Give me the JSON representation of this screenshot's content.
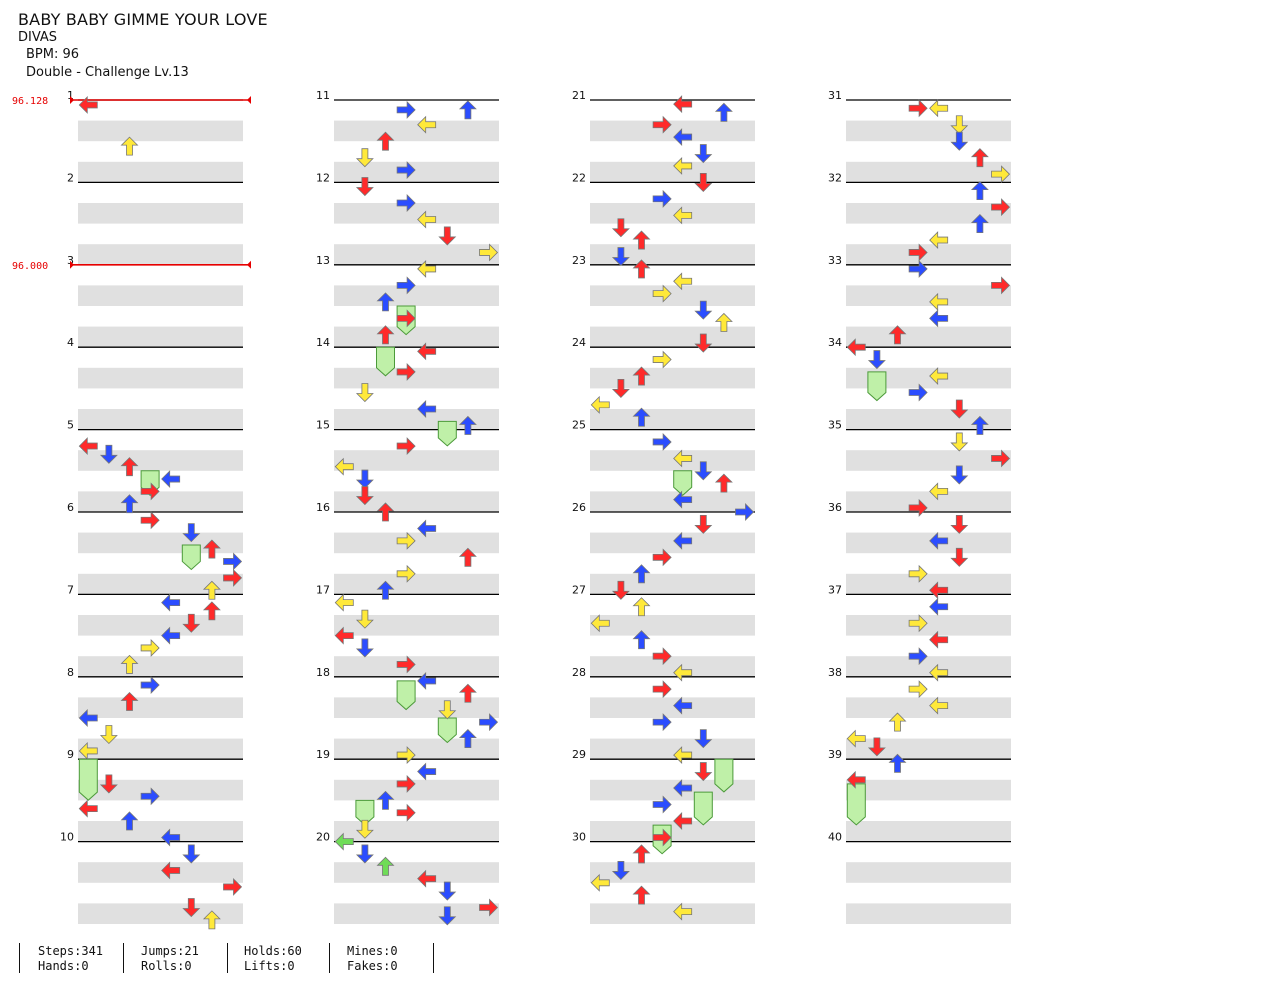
{
  "song": {
    "title": "BABY BABY GIMME YOUR LOVE",
    "artist": "DIVAS",
    "bpm_label": "BPM:",
    "bpm_value": "96",
    "mode": "Double",
    "separator": " - ",
    "difficulty": "Challenge",
    "level_prefix": " Lv.",
    "level": "13"
  },
  "colors": {
    "red": "#ff2a2a",
    "blue": "#2b4dff",
    "yellow": "#ffe93a",
    "green": "#6fdc57",
    "hold": "#bff0a8",
    "stripe": "#e0e0e0",
    "bpm_marker": "#e60000"
  },
  "chart": {
    "columns_measure_start": [
      1,
      11,
      21,
      31
    ],
    "measure_labels": [
      "1",
      "2",
      "3",
      "4",
      "5",
      "6",
      "7",
      "8",
      "9",
      "10",
      "11",
      "12",
      "13",
      "14",
      "15",
      "16",
      "17",
      "18",
      "19",
      "20",
      "21",
      "22",
      "23",
      "24",
      "25",
      "26",
      "27",
      "28",
      "29",
      "30",
      "31",
      "32",
      "33",
      "34",
      "35",
      "36",
      "37",
      "38",
      "39",
      "40"
    ],
    "bpm_changes": [
      {
        "measure": 1,
        "label": "96.128"
      },
      {
        "measure": 3,
        "label": "96.000"
      }
    ],
    "icon": "step-arrow-icon",
    "notes": [
      {
        "m": 1.06,
        "l": 0,
        "c": "red"
      },
      {
        "m": 1.56,
        "l": 2,
        "c": "yellow"
      },
      {
        "m": 5.2,
        "l": 0,
        "c": "red"
      },
      {
        "m": 5.3,
        "l": 1,
        "c": "blue"
      },
      {
        "m": 5.45,
        "l": 2,
        "c": "red"
      },
      {
        "m": 5.6,
        "l": 4,
        "c": "blue"
      },
      {
        "m": 5.75,
        "l": 3,
        "c": "red"
      },
      {
        "m": 5.9,
        "l": 2,
        "c": "blue"
      },
      {
        "m": 6.1,
        "l": 3,
        "c": "red"
      },
      {
        "m": 6.25,
        "l": 5,
        "c": "blue"
      },
      {
        "m": 6.45,
        "l": 6,
        "c": "red"
      },
      {
        "m": 6.6,
        "l": 7,
        "c": "blue"
      },
      {
        "m": 6.8,
        "l": 7,
        "c": "red"
      },
      {
        "m": 6.95,
        "l": 6,
        "c": "yellow"
      },
      {
        "m": 7.1,
        "l": 4,
        "c": "blue"
      },
      {
        "m": 7.2,
        "l": 6,
        "c": "red"
      },
      {
        "m": 7.35,
        "l": 5,
        "c": "red"
      },
      {
        "m": 7.5,
        "l": 4,
        "c": "blue"
      },
      {
        "m": 7.65,
        "l": 3,
        "c": "yellow"
      },
      {
        "m": 7.85,
        "l": 2,
        "c": "yellow"
      },
      {
        "m": 8.1,
        "l": 3,
        "c": "blue"
      },
      {
        "m": 8.3,
        "l": 2,
        "c": "red"
      },
      {
        "m": 8.5,
        "l": 0,
        "c": "blue"
      },
      {
        "m": 8.7,
        "l": 1,
        "c": "yellow"
      },
      {
        "m": 8.9,
        "l": 0,
        "c": "yellow"
      },
      {
        "m": 9.3,
        "l": 1,
        "c": "red"
      },
      {
        "m": 9.45,
        "l": 3,
        "c": "blue"
      },
      {
        "m": 9.6,
        "l": 0,
        "c": "red"
      },
      {
        "m": 9.75,
        "l": 2,
        "c": "blue"
      },
      {
        "m": 9.95,
        "l": 4,
        "c": "blue"
      },
      {
        "m": 10.15,
        "l": 5,
        "c": "blue"
      },
      {
        "m": 10.35,
        "l": 4,
        "c": "red"
      },
      {
        "m": 10.55,
        "l": 7,
        "c": "red"
      },
      {
        "m": 10.8,
        "l": 5,
        "c": "red"
      },
      {
        "m": 10.95,
        "l": 6,
        "c": "yellow"
      },
      {
        "m": 11.12,
        "l": 3,
        "c": "blue"
      },
      {
        "m": 11.12,
        "l": 6,
        "c": "blue"
      },
      {
        "m": 11.3,
        "l": 4,
        "c": "yellow"
      },
      {
        "m": 11.5,
        "l": 2,
        "c": "red"
      },
      {
        "m": 11.7,
        "l": 1,
        "c": "yellow"
      },
      {
        "m": 11.85,
        "l": 3,
        "c": "blue"
      },
      {
        "m": 12.05,
        "l": 1,
        "c": "red"
      },
      {
        "m": 12.25,
        "l": 3,
        "c": "blue"
      },
      {
        "m": 12.45,
        "l": 4,
        "c": "yellow"
      },
      {
        "m": 12.65,
        "l": 5,
        "c": "red"
      },
      {
        "m": 12.85,
        "l": 7,
        "c": "yellow"
      },
      {
        "m": 13.05,
        "l": 4,
        "c": "yellow"
      },
      {
        "m": 13.25,
        "l": 3,
        "c": "blue"
      },
      {
        "m": 13.45,
        "l": 2,
        "c": "blue"
      },
      {
        "m": 13.65,
        "l": 3,
        "c": "red"
      },
      {
        "m": 13.85,
        "l": 2,
        "c": "red"
      },
      {
        "m": 14.05,
        "l": 4,
        "c": "red"
      },
      {
        "m": 14.3,
        "l": 3,
        "c": "red"
      },
      {
        "m": 14.55,
        "l": 1,
        "c": "yellow"
      },
      {
        "m": 14.75,
        "l": 4,
        "c": "blue"
      },
      {
        "m": 14.95,
        "l": 6,
        "c": "blue"
      },
      {
        "m": 15.2,
        "l": 3,
        "c": "red"
      },
      {
        "m": 15.45,
        "l": 0,
        "c": "yellow"
      },
      {
        "m": 15.6,
        "l": 1,
        "c": "blue"
      },
      {
        "m": 15.8,
        "l": 1,
        "c": "red"
      },
      {
        "m": 16.0,
        "l": 2,
        "c": "red"
      },
      {
        "m": 16.2,
        "l": 4,
        "c": "blue"
      },
      {
        "m": 16.35,
        "l": 3,
        "c": "yellow"
      },
      {
        "m": 16.55,
        "l": 6,
        "c": "red"
      },
      {
        "m": 16.75,
        "l": 3,
        "c": "yellow"
      },
      {
        "m": 16.95,
        "l": 2,
        "c": "blue"
      },
      {
        "m": 17.1,
        "l": 0,
        "c": "yellow"
      },
      {
        "m": 17.3,
        "l": 1,
        "c": "yellow"
      },
      {
        "m": 17.5,
        "l": 0,
        "c": "red"
      },
      {
        "m": 17.65,
        "l": 1,
        "c": "blue"
      },
      {
        "m": 17.85,
        "l": 3,
        "c": "red"
      },
      {
        "m": 18.05,
        "l": 4,
        "c": "blue"
      },
      {
        "m": 18.2,
        "l": 6,
        "c": "red"
      },
      {
        "m": 18.4,
        "l": 5,
        "c": "yellow"
      },
      {
        "m": 18.55,
        "l": 7,
        "c": "blue"
      },
      {
        "m": 18.75,
        "l": 6,
        "c": "blue"
      },
      {
        "m": 18.95,
        "l": 3,
        "c": "yellow"
      },
      {
        "m": 19.15,
        "l": 4,
        "c": "blue"
      },
      {
        "m": 19.3,
        "l": 3,
        "c": "red"
      },
      {
        "m": 19.5,
        "l": 2,
        "c": "blue"
      },
      {
        "m": 19.65,
        "l": 3,
        "c": "red"
      },
      {
        "m": 19.85,
        "l": 1,
        "c": "yellow"
      },
      {
        "m": 20.0,
        "l": 0,
        "c": "green"
      },
      {
        "m": 20.15,
        "l": 1,
        "c": "blue"
      },
      {
        "m": 20.3,
        "l": 2,
        "c": "green"
      },
      {
        "m": 20.45,
        "l": 4,
        "c": "red"
      },
      {
        "m": 20.6,
        "l": 5,
        "c": "blue"
      },
      {
        "m": 20.8,
        "l": 7,
        "c": "red"
      },
      {
        "m": 20.9,
        "l": 5,
        "c": "blue"
      },
      {
        "m": 21.05,
        "l": 4,
        "c": "red"
      },
      {
        "m": 21.15,
        "l": 6,
        "c": "blue"
      },
      {
        "m": 21.3,
        "l": 3,
        "c": "red"
      },
      {
        "m": 21.45,
        "l": 4,
        "c": "blue"
      },
      {
        "m": 21.65,
        "l": 5,
        "c": "blue"
      },
      {
        "m": 21.8,
        "l": 4,
        "c": "yellow"
      },
      {
        "m": 22.0,
        "l": 5,
        "c": "red"
      },
      {
        "m": 22.2,
        "l": 3,
        "c": "blue"
      },
      {
        "m": 22.4,
        "l": 4,
        "c": "yellow"
      },
      {
        "m": 22.55,
        "l": 1,
        "c": "red"
      },
      {
        "m": 22.7,
        "l": 2,
        "c": "red"
      },
      {
        "m": 22.9,
        "l": 1,
        "c": "blue"
      },
      {
        "m": 23.05,
        "l": 2,
        "c": "red"
      },
      {
        "m": 23.2,
        "l": 4,
        "c": "yellow"
      },
      {
        "m": 23.35,
        "l": 3,
        "c": "yellow"
      },
      {
        "m": 23.55,
        "l": 5,
        "c": "blue"
      },
      {
        "m": 23.7,
        "l": 6,
        "c": "yellow"
      },
      {
        "m": 23.95,
        "l": 5,
        "c": "red"
      },
      {
        "m": 24.15,
        "l": 3,
        "c": "yellow"
      },
      {
        "m": 24.35,
        "l": 2,
        "c": "red"
      },
      {
        "m": 24.5,
        "l": 1,
        "c": "red"
      },
      {
        "m": 24.7,
        "l": 0,
        "c": "yellow"
      },
      {
        "m": 24.85,
        "l": 2,
        "c": "blue"
      },
      {
        "m": 25.15,
        "l": 3,
        "c": "blue"
      },
      {
        "m": 25.35,
        "l": 4,
        "c": "yellow"
      },
      {
        "m": 25.5,
        "l": 5,
        "c": "blue"
      },
      {
        "m": 25.65,
        "l": 6,
        "c": "red"
      },
      {
        "m": 25.85,
        "l": 4,
        "c": "blue"
      },
      {
        "m": 26.0,
        "l": 7,
        "c": "blue"
      },
      {
        "m": 26.15,
        "l": 5,
        "c": "red"
      },
      {
        "m": 26.35,
        "l": 4,
        "c": "blue"
      },
      {
        "m": 26.55,
        "l": 3,
        "c": "red"
      },
      {
        "m": 26.75,
        "l": 2,
        "c": "blue"
      },
      {
        "m": 26.95,
        "l": 1,
        "c": "red"
      },
      {
        "m": 27.15,
        "l": 2,
        "c": "yellow"
      },
      {
        "m": 27.35,
        "l": 0,
        "c": "yellow"
      },
      {
        "m": 27.55,
        "l": 2,
        "c": "blue"
      },
      {
        "m": 27.75,
        "l": 3,
        "c": "red"
      },
      {
        "m": 27.95,
        "l": 4,
        "c": "yellow"
      },
      {
        "m": 28.15,
        "l": 3,
        "c": "red"
      },
      {
        "m": 28.35,
        "l": 4,
        "c": "blue"
      },
      {
        "m": 28.55,
        "l": 3,
        "c": "blue"
      },
      {
        "m": 28.75,
        "l": 5,
        "c": "blue"
      },
      {
        "m": 28.95,
        "l": 4,
        "c": "yellow"
      },
      {
        "m": 29.15,
        "l": 5,
        "c": "red"
      },
      {
        "m": 29.35,
        "l": 4,
        "c": "blue"
      },
      {
        "m": 29.55,
        "l": 3,
        "c": "blue"
      },
      {
        "m": 29.75,
        "l": 4,
        "c": "red"
      },
      {
        "m": 29.95,
        "l": 3,
        "c": "red"
      },
      {
        "m": 30.15,
        "l": 2,
        "c": "red"
      },
      {
        "m": 30.35,
        "l": 1,
        "c": "blue"
      },
      {
        "m": 30.5,
        "l": 0,
        "c": "yellow"
      },
      {
        "m": 30.65,
        "l": 2,
        "c": "red"
      },
      {
        "m": 30.85,
        "l": 4,
        "c": "yellow"
      },
      {
        "m": 31.1,
        "l": 3,
        "c": "red"
      },
      {
        "m": 31.1,
        "l": 4,
        "c": "yellow"
      },
      {
        "m": 31.3,
        "l": 5,
        "c": "yellow"
      },
      {
        "m": 31.5,
        "l": 5,
        "c": "blue"
      },
      {
        "m": 31.7,
        "l": 6,
        "c": "red"
      },
      {
        "m": 31.9,
        "l": 7,
        "c": "yellow"
      },
      {
        "m": 32.1,
        "l": 6,
        "c": "blue"
      },
      {
        "m": 32.3,
        "l": 7,
        "c": "red"
      },
      {
        "m": 32.5,
        "l": 6,
        "c": "blue"
      },
      {
        "m": 32.7,
        "l": 4,
        "c": "yellow"
      },
      {
        "m": 32.85,
        "l": 3,
        "c": "red"
      },
      {
        "m": 33.05,
        "l": 3,
        "c": "blue"
      },
      {
        "m": 33.25,
        "l": 7,
        "c": "red"
      },
      {
        "m": 33.45,
        "l": 4,
        "c": "yellow"
      },
      {
        "m": 33.65,
        "l": 4,
        "c": "blue"
      },
      {
        "m": 33.85,
        "l": 2,
        "c": "red"
      },
      {
        "m": 34.0,
        "l": 0,
        "c": "red"
      },
      {
        "m": 34.15,
        "l": 1,
        "c": "blue"
      },
      {
        "m": 34.35,
        "l": 4,
        "c": "yellow"
      },
      {
        "m": 34.55,
        "l": 3,
        "c": "blue"
      },
      {
        "m": 34.75,
        "l": 5,
        "c": "red"
      },
      {
        "m": 34.95,
        "l": 6,
        "c": "blue"
      },
      {
        "m": 35.15,
        "l": 5,
        "c": "yellow"
      },
      {
        "m": 35.35,
        "l": 7,
        "c": "red"
      },
      {
        "m": 35.55,
        "l": 5,
        "c": "blue"
      },
      {
        "m": 35.75,
        "l": 4,
        "c": "yellow"
      },
      {
        "m": 35.95,
        "l": 3,
        "c": "red"
      },
      {
        "m": 36.15,
        "l": 5,
        "c": "red"
      },
      {
        "m": 36.35,
        "l": 4,
        "c": "blue"
      },
      {
        "m": 36.55,
        "l": 5,
        "c": "red"
      },
      {
        "m": 36.75,
        "l": 3,
        "c": "yellow"
      },
      {
        "m": 36.95,
        "l": 4,
        "c": "red"
      },
      {
        "m": 37.15,
        "l": 4,
        "c": "blue"
      },
      {
        "m": 37.35,
        "l": 3,
        "c": "yellow"
      },
      {
        "m": 37.55,
        "l": 4,
        "c": "red"
      },
      {
        "m": 37.75,
        "l": 3,
        "c": "blue"
      },
      {
        "m": 37.95,
        "l": 4,
        "c": "yellow"
      },
      {
        "m": 38.15,
        "l": 3,
        "c": "yellow"
      },
      {
        "m": 38.35,
        "l": 4,
        "c": "yellow"
      },
      {
        "m": 38.55,
        "l": 2,
        "c": "yellow"
      },
      {
        "m": 38.75,
        "l": 0,
        "c": "yellow"
      },
      {
        "m": 38.85,
        "l": 1,
        "c": "red"
      },
      {
        "m": 39.05,
        "l": 2,
        "c": "blue"
      },
      {
        "m": 39.25,
        "l": 0,
        "c": "red"
      }
    ],
    "holds": [
      {
        "m": 9.0,
        "l": 0,
        "len": 0.4
      },
      {
        "m": 5.5,
        "l": 3,
        "len": 0.2
      },
      {
        "m": 6.4,
        "l": 5,
        "len": 0.2
      },
      {
        "m": 13.5,
        "l": 3,
        "len": 0.25
      },
      {
        "m": 14.0,
        "l": 2,
        "len": 0.25
      },
      {
        "m": 14.9,
        "l": 5,
        "len": 0.2
      },
      {
        "m": 18.05,
        "l": 3,
        "len": 0.25
      },
      {
        "m": 18.5,
        "l": 5,
        "len": 0.2
      },
      {
        "m": 19.5,
        "l": 1,
        "len": 0.2
      },
      {
        "m": 25.5,
        "l": 4,
        "len": 0.2
      },
      {
        "m": 29.0,
        "l": 6,
        "len": 0.3
      },
      {
        "m": 29.4,
        "l": 5,
        "len": 0.3
      },
      {
        "m": 29.8,
        "l": 3,
        "len": 0.25
      },
      {
        "m": 34.3,
        "l": 1,
        "len": 0.25
      },
      {
        "m": 39.3,
        "l": 0,
        "len": 0.4
      }
    ]
  },
  "stats": {
    "steps": "Steps:341",
    "jumps": "Jumps:21",
    "holds": "Holds:60",
    "mines": "Mines:0",
    "hands": "Hands:0",
    "rolls": "Rolls:0",
    "lifts": "Lifts:0",
    "fakes": "Fakes:0"
  }
}
